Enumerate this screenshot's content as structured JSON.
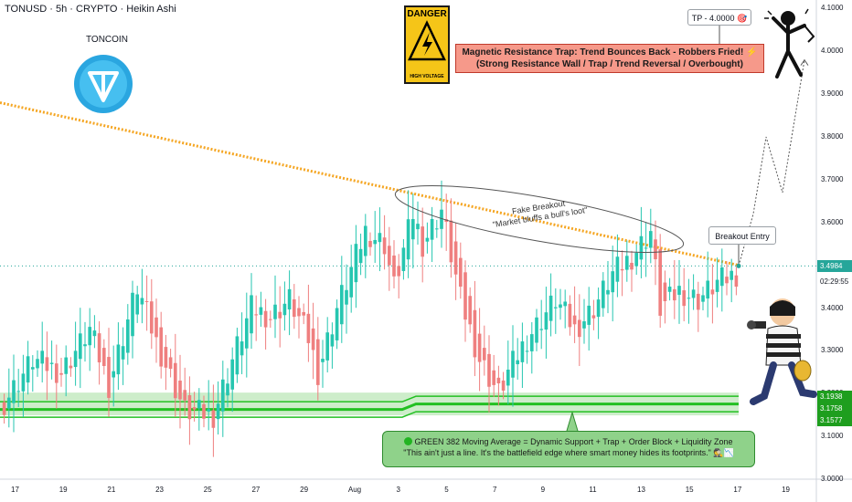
{
  "header": {
    "title": "TONUSD · 5h · CRYPTO · Heikin Ashi"
  },
  "logo": {
    "label": "TONCOIN"
  },
  "danger": {
    "top": "DANGER",
    "bottom": "HIGH VOLTAGE"
  },
  "banner": {
    "line1": "Magnetic Resistance Trap: Trend Bounces Back - Robbers Fried! ⚡",
    "line2": "(Strong Resistance Wall / Trap / Trend Reversal / Overbought)"
  },
  "tp_label": "TP - 4.0000 🎯",
  "breakout_label": "Breakout Entry",
  "fake_breakout": {
    "line1": "Fake Breakout",
    "line2": "\"Market bluffs a bull's loot\""
  },
  "green_box": {
    "line1": "GREEN 382 Moving Average = Dynamic Support + Trap + Order Block + Liquidity Zone",
    "line2": "\"This ain't just a line. It's the battlefield edge where smart money hides its footprints.\" 🕵📉"
  },
  "price_tags": [
    {
      "text": "3.4984",
      "color": "#26a69a",
      "price": 3.4984
    },
    {
      "text": "3.1938",
      "color": "#1e9e1e",
      "price": 3.1938
    },
    {
      "text": "3.1758",
      "color": "#1e9e1e",
      "price": 3.1758
    },
    {
      "text": "3.1577",
      "color": "#1e9e1e",
      "price": 3.1577
    }
  ],
  "countdown": "02:29:55",
  "colors": {
    "up": "#26c6b0",
    "down": "#ef7f7f",
    "ma_orange": "#f5a623",
    "ma_green": "#22c022",
    "zone_green": "#b8e6b4"
  },
  "chart_data": {
    "type": "candlestick",
    "title": "TONUSD · 5h · CRYPTO · Heikin Ashi",
    "x_ticks": [
      "17",
      "19",
      "21",
      "23",
      "25",
      "27",
      "29",
      "Aug",
      "3",
      "5",
      "7",
      "9",
      "11",
      "13",
      "15",
      "17",
      "19"
    ],
    "y_ticks": [
      "4.1000",
      "4.0000",
      "3.9000",
      "3.8000",
      "3.7000",
      "3.6000",
      "3.5000",
      "3.4000",
      "3.3000",
      "3.2000",
      "3.1000",
      "3.0000"
    ],
    "ylim": [
      3.0,
      4.12
    ],
    "last_price": 3.4984,
    "orange_ma": {
      "start": 3.88,
      "end": 3.5
    },
    "green_ma": [
      3.1938,
      3.1758,
      3.1577
    ],
    "tp": 4.0,
    "projection": [
      [
        3.4984,
        0
      ],
      [
        3.62,
        1
      ],
      [
        3.8,
        2
      ],
      [
        3.67,
        3
      ],
      [
        3.98,
        4
      ]
    ],
    "candles_anchor": [
      [
        0,
        3.18
      ],
      [
        6,
        3.28
      ],
      [
        12,
        3.25
      ],
      [
        18,
        3.35
      ],
      [
        22,
        3.22
      ],
      [
        28,
        3.45
      ],
      [
        32,
        3.32
      ],
      [
        38,
        3.16
      ],
      [
        44,
        3.15
      ],
      [
        48,
        3.28
      ],
      [
        52,
        3.4
      ],
      [
        56,
        3.38
      ],
      [
        60,
        3.42
      ],
      [
        64,
        3.33
      ],
      [
        66,
        3.25
      ],
      [
        70,
        3.4
      ],
      [
        76,
        3.58
      ],
      [
        80,
        3.55
      ],
      [
        82,
        3.45
      ],
      [
        86,
        3.62
      ],
      [
        88,
        3.55
      ],
      [
        92,
        3.63
      ],
      [
        96,
        3.42
      ],
      [
        100,
        3.28
      ],
      [
        104,
        3.2
      ],
      [
        106,
        3.25
      ],
      [
        110,
        3.33
      ],
      [
        116,
        3.42
      ],
      [
        120,
        3.35
      ],
      [
        124,
        3.4
      ],
      [
        128,
        3.48
      ],
      [
        132,
        3.52
      ],
      [
        136,
        3.58
      ],
      [
        138,
        3.4
      ],
      [
        142,
        3.44
      ],
      [
        146,
        3.42
      ],
      [
        150,
        3.46
      ],
      [
        154,
        3.48
      ]
    ]
  }
}
